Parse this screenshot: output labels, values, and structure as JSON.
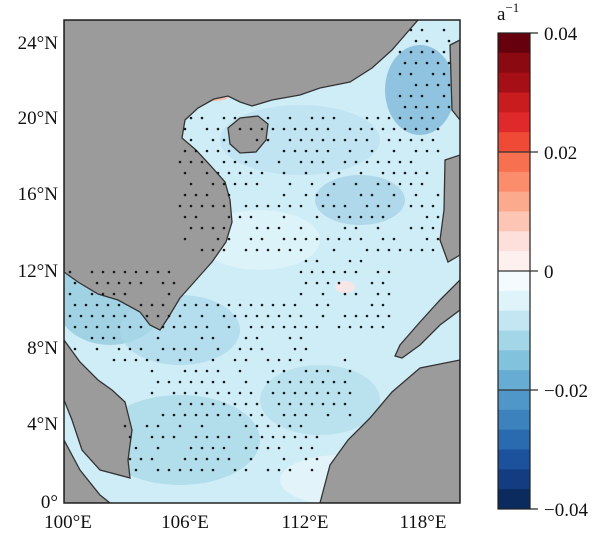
{
  "map": {
    "latitude_ticks": [
      "24°N",
      "20°N",
      "16°N",
      "12°N",
      "8°N",
      "4°N",
      "0°"
    ],
    "longitude_ticks": [
      "100°E",
      "106°E",
      "112°E",
      "118°E"
    ],
    "land_color": "#9b9b9b",
    "stipple_color": "#1a1a1a"
  },
  "colorbar": {
    "unit": "a",
    "unit_exponent": "−1",
    "tick_labels": [
      "0.04",
      "0.02",
      "0",
      "−0.02",
      "−0.04"
    ],
    "colors_top_to_bottom": [
      "#67000d",
      "#8b0a12",
      "#a50f15",
      "#c81c1e",
      "#e0292a",
      "#ef4a36",
      "#f7704f",
      "#fb8d6c",
      "#fcaa8e",
      "#fdc6b4",
      "#fde0dc",
      "#fff0f0",
      "#f3fbff",
      "#def3fa",
      "#c3e6f2",
      "#a3d6e6",
      "#82c2dc",
      "#66acd3",
      "#5097c9",
      "#3c82bd",
      "#2a6bb0",
      "#1c529c",
      "#133d80",
      "#0b2b5e"
    ]
  }
}
